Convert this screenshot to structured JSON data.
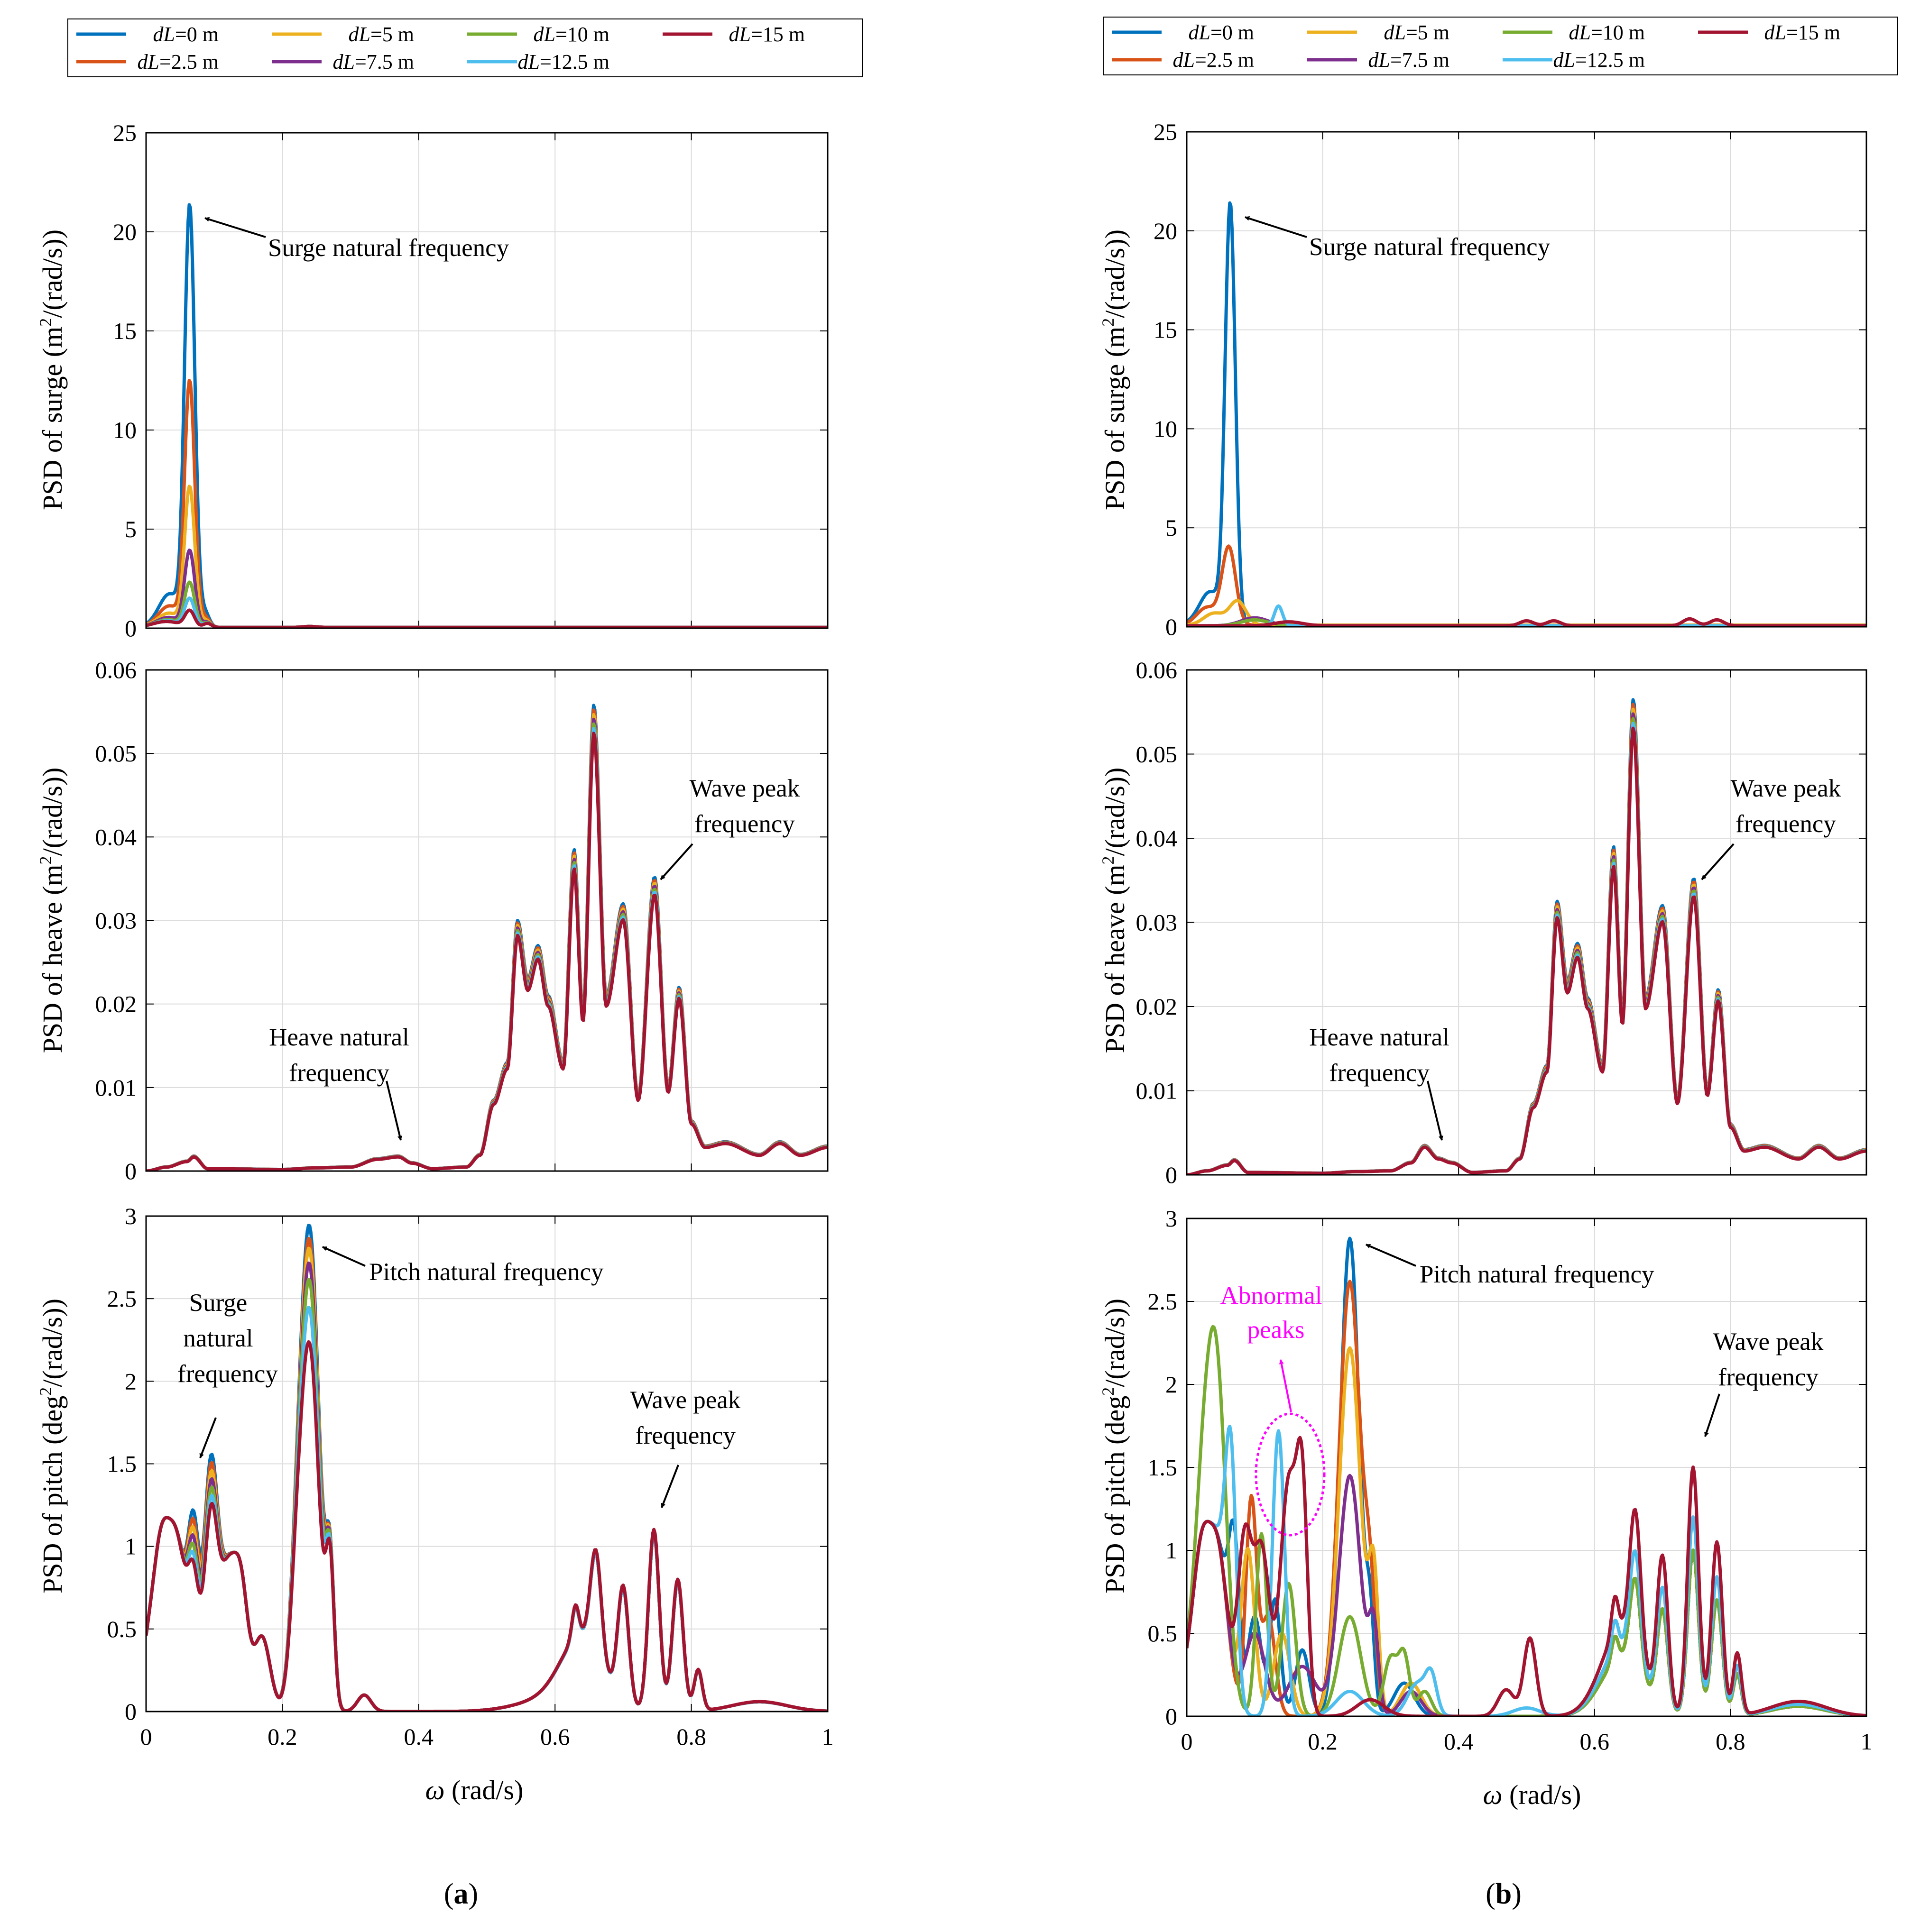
{
  "legend": {
    "entries": [
      {
        "prefix": "dL",
        "suffix": "=0 m",
        "color": "#0072BD"
      },
      {
        "prefix": "dL",
        "suffix": "=5 m",
        "color": "#EDB120"
      },
      {
        "prefix": "dL",
        "suffix": "=10 m",
        "color": "#77AC30"
      },
      {
        "prefix": "dL",
        "suffix": "=15 m",
        "color": "#A2142F"
      },
      {
        "prefix": "dL",
        "suffix": "=2.5 m",
        "color": "#D95319"
      },
      {
        "prefix": "dL",
        "suffix": "=7.5 m",
        "color": "#7E2F8E"
      },
      {
        "prefix": "dL",
        "suffix": "=12.5 m",
        "color": "#4DBEEE"
      }
    ]
  },
  "xaxis": {
    "label_sym": "ω",
    "label_unit": " (rad/s)",
    "ticks": [
      "0",
      "0.2",
      "0.4",
      "0.6",
      "0.8",
      "1"
    ]
  },
  "captions": {
    "a": {
      "open": "(",
      "letter": "a",
      "close": ")"
    },
    "b": {
      "open": "(",
      "letter": "b",
      "close": ")"
    }
  },
  "ylabels": {
    "surge": {
      "pre": "PSD of surge (m",
      "sup": "2",
      "post": "/(rad/s))"
    },
    "heave": {
      "pre": "PSD of heave (m",
      "sup": "2",
      "post": "/(rad/s))"
    },
    "pitch": {
      "pre": "PSD of pitch (deg",
      "sup": "2",
      "post": "/(rad/s))"
    }
  },
  "chart_data": [
    {
      "id": "a-surge",
      "type": "line",
      "xlim": [
        0,
        1
      ],
      "ylim": [
        0,
        25
      ],
      "yticks": [
        "0",
        "5",
        "10",
        "15",
        "20",
        "25"
      ],
      "grid": true,
      "annotations": [
        {
          "text": [
            "Surge natural frequency"
          ]
        }
      ],
      "series": [
        {
          "name": "dL=0 m",
          "color": "#0072BD",
          "peak_x": 0.064,
          "peak_y": 21.1
        },
        {
          "name": "dL=2.5 m",
          "color": "#D95319",
          "peak_x": 0.064,
          "peak_y": 12.3
        },
        {
          "name": "dL=5 m",
          "color": "#EDB120",
          "peak_x": 0.064,
          "peak_y": 7.0
        },
        {
          "name": "dL=7.5 m",
          "color": "#7E2F8E",
          "peak_x": 0.064,
          "peak_y": 3.8
        },
        {
          "name": "dL=10 m",
          "color": "#77AC30",
          "peak_x": 0.064,
          "peak_y": 2.2
        },
        {
          "name": "dL=12.5 m",
          "color": "#4DBEEE",
          "peak_x": 0.064,
          "peak_y": 1.4
        },
        {
          "name": "dL=15 m",
          "color": "#A2142F",
          "peak_x": 0.064,
          "peak_y": 0.8
        }
      ]
    },
    {
      "id": "a-heave",
      "type": "line",
      "xlim": [
        0,
        1
      ],
      "ylim": [
        0,
        0.06
      ],
      "yticks": [
        "0",
        "0.01",
        "0.02",
        "0.03",
        "0.04",
        "0.05",
        "0.06"
      ],
      "grid": true,
      "annotations": [
        {
          "text": [
            "Heave natural",
            "frequency"
          ]
        },
        {
          "text": [
            "Wave peak",
            "frequency"
          ]
        }
      ],
      "series_note": "all dL curves overlap",
      "x": [
        0,
        0.03,
        0.06,
        0.07,
        0.09,
        0.2,
        0.25,
        0.3,
        0.34,
        0.37,
        0.39,
        0.42,
        0.47,
        0.49,
        0.51,
        0.53,
        0.545,
        0.56,
        0.575,
        0.59,
        0.612,
        0.628,
        0.641,
        0.657,
        0.675,
        0.7,
        0.722,
        0.746,
        0.766,
        0.782,
        0.8,
        0.82,
        0.85,
        0.9,
        0.93,
        0.96,
        1.0
      ],
      "y": [
        0,
        0.0005,
        0.0012,
        0.0018,
        0.0003,
        0.0002,
        0.0004,
        0.0005,
        0.0015,
        0.0018,
        0.001,
        0.0003,
        0.0005,
        0.002,
        0.0085,
        0.013,
        0.03,
        0.023,
        0.027,
        0.021,
        0.013,
        0.0385,
        0.019,
        0.0558,
        0.021,
        0.032,
        0.009,
        0.0352,
        0.01,
        0.022,
        0.006,
        0.003,
        0.0035,
        0.002,
        0.0035,
        0.002,
        0.003
      ]
    },
    {
      "id": "a-pitch",
      "type": "line",
      "xlim": [
        0,
        1
      ],
      "ylim": [
        0,
        3
      ],
      "yticks": [
        "0",
        "0.5",
        "1",
        "1.5",
        "2",
        "2.5",
        "3"
      ],
      "grid": true,
      "annotations": [
        {
          "text": [
            "Pitch natural frequency"
          ]
        },
        {
          "text": [
            "Surge",
            "natural",
            "frequency"
          ]
        },
        {
          "text": [
            "Wave peak",
            "frequency"
          ]
        }
      ],
      "series": [
        {
          "name": "dL=0 m",
          "color": "#0072BD",
          "peak_x": 0.24,
          "peak_y": 2.88
        },
        {
          "name": "dL=2.5 m",
          "color": "#D95319",
          "peak_x": 0.24,
          "peak_y": 2.8
        },
        {
          "name": "dL=5 m",
          "color": "#EDB120",
          "peak_x": 0.24,
          "peak_y": 2.74
        },
        {
          "name": "dL=7.5 m",
          "color": "#7E2F8E",
          "peak_x": 0.24,
          "peak_y": 2.65
        },
        {
          "name": "dL=10 m",
          "color": "#77AC30",
          "peak_x": 0.24,
          "peak_y": 2.55
        },
        {
          "name": "dL=12.5 m",
          "color": "#4DBEEE",
          "peak_x": 0.24,
          "peak_y": 2.38
        },
        {
          "name": "dL=15 m",
          "color": "#A2142F",
          "peak_x": 0.24,
          "peak_y": 2.17
        }
      ]
    },
    {
      "id": "b-surge",
      "type": "line",
      "xlim": [
        0,
        1
      ],
      "ylim": [
        0,
        25
      ],
      "yticks": [
        "0",
        "5",
        "10",
        "15",
        "20",
        "25"
      ],
      "grid": true,
      "annotations": [
        {
          "text": [
            "Surge natural frequency"
          ]
        }
      ],
      "series": [
        {
          "name": "dL=0 m",
          "color": "#0072BD",
          "peak_x": 0.064,
          "peak_y": 21.1
        },
        {
          "name": "dL=2.5 m",
          "color": "#D95319",
          "peak_x": 0.06,
          "peak_y": 3.9
        },
        {
          "name": "dL=5 m",
          "color": "#EDB120",
          "peak_x": 0.07,
          "peak_y": 1.4
        },
        {
          "name": "dL=12.5 m",
          "color": "#4DBEEE",
          "peak_x": 0.135,
          "peak_y": 1.0
        },
        {
          "name": "dL=15 m",
          "color": "#A2142F",
          "peak_x": 0.5,
          "peak_y": 0.4
        }
      ]
    },
    {
      "id": "b-heave",
      "type": "line",
      "xlim": [
        0,
        1
      ],
      "ylim": [
        0,
        0.06
      ],
      "yticks": [
        "0",
        "0.01",
        "0.02",
        "0.03",
        "0.04",
        "0.05",
        "0.06"
      ],
      "grid": true,
      "annotations": [
        {
          "text": [
            "Heave natural",
            "frequency"
          ]
        },
        {
          "text": [
            "Wave peak",
            "frequency"
          ]
        }
      ],
      "series_note": "all dL curves overlap",
      "x": [
        0,
        0.03,
        0.06,
        0.07,
        0.09,
        0.2,
        0.25,
        0.3,
        0.33,
        0.35,
        0.37,
        0.39,
        0.42,
        0.47,
        0.49,
        0.51,
        0.53,
        0.545,
        0.56,
        0.575,
        0.59,
        0.612,
        0.628,
        0.641,
        0.657,
        0.675,
        0.7,
        0.722,
        0.746,
        0.766,
        0.782,
        0.8,
        0.82,
        0.85,
        0.9,
        0.93,
        0.96,
        1.0
      ],
      "y": [
        0,
        0.0005,
        0.0012,
        0.0018,
        0.0003,
        0.0002,
        0.0004,
        0.0005,
        0.0015,
        0.0035,
        0.002,
        0.0015,
        0.0003,
        0.0005,
        0.002,
        0.0085,
        0.013,
        0.0325,
        0.023,
        0.0275,
        0.021,
        0.013,
        0.039,
        0.019,
        0.0565,
        0.021,
        0.032,
        0.009,
        0.0352,
        0.01,
        0.022,
        0.006,
        0.003,
        0.0035,
        0.002,
        0.0035,
        0.002,
        0.003
      ]
    },
    {
      "id": "b-pitch",
      "type": "line",
      "xlim": [
        0,
        1
      ],
      "ylim": [
        0,
        3
      ],
      "yticks": [
        "0",
        "0.5",
        "1",
        "1.5",
        "2",
        "2.5",
        "3"
      ],
      "grid": true,
      "annotations": [
        {
          "text": [
            "Pitch natural frequency"
          ]
        },
        {
          "text": [
            "Abnormal",
            "peaks"
          ]
        },
        {
          "text": [
            "Wave peak",
            "frequency"
          ]
        }
      ],
      "series": [
        {
          "name": "dL=0 m",
          "color": "#0072BD",
          "peak_x": 0.24,
          "peak_y": 2.88
        },
        {
          "name": "dL=2.5 m",
          "color": "#D95319",
          "peak_x": 0.24,
          "peak_y": 2.62
        },
        {
          "name": "dL=5 m",
          "color": "#EDB120",
          "peak_x": 0.24,
          "peak_y": 2.22
        },
        {
          "name": "dL=7.5 m",
          "color": "#7E2F8E",
          "peak_x": 0.24,
          "peak_y": 1.45
        },
        {
          "name": "dL=10 m",
          "color": "#77AC30",
          "peak_x": 0.24,
          "peak_y": 0.6
        },
        {
          "name": "dL=12.5 m",
          "color": "#4DBEEE",
          "peak_x": 0.135,
          "peak_y": 1.72
        },
        {
          "name": "dL=15 m",
          "color": "#A2142F",
          "peak_x": 0.74,
          "peak_y": 1.55
        }
      ]
    }
  ]
}
